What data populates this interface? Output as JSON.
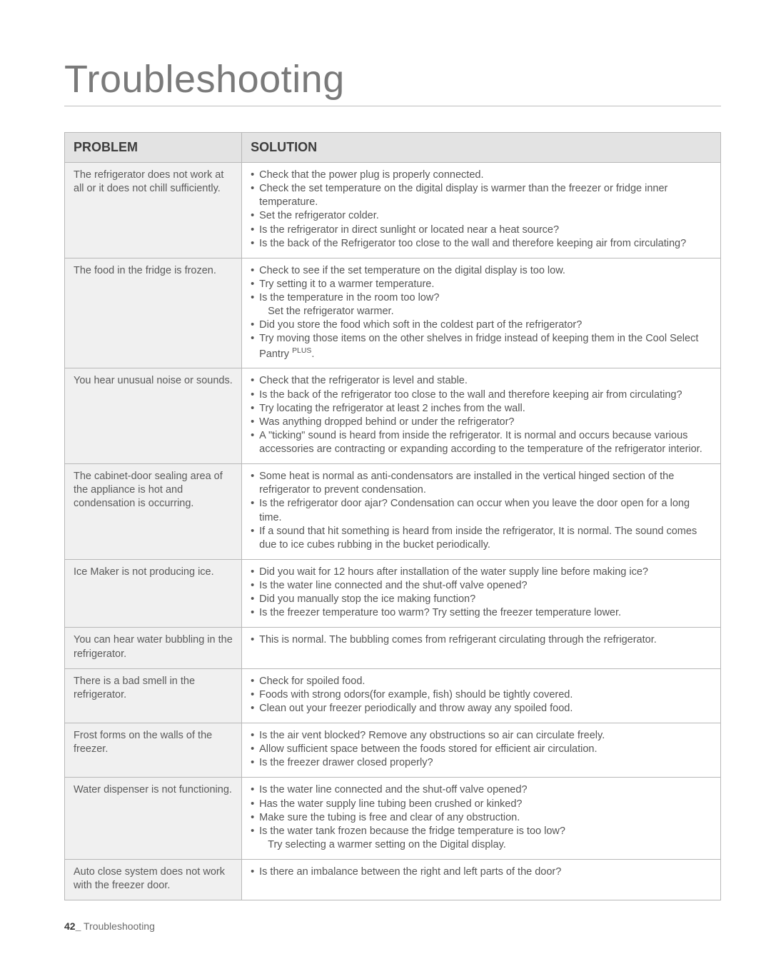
{
  "title": "Troubleshooting",
  "columns": [
    "PROBLEM",
    "SOLUTION"
  ],
  "rows": [
    {
      "problem": "The refrigerator does not work at all or it does not chill sufficiently.",
      "solutions": [
        {
          "t": "Check that the power plug is properly connected."
        },
        {
          "t": "Check the set temperature on the digital display is warmer than the freezer or fridge inner temperature."
        },
        {
          "t": "Set the refrigerator colder."
        },
        {
          "t": "Is the refrigerator in direct sunlight or located near a heat source?"
        },
        {
          "t": "Is the back of the Refrigerator too close to the wall and therefore keeping air from circulating?"
        }
      ]
    },
    {
      "problem": "The food in the fridge is frozen.",
      "solutions": [
        {
          "t": "Check to see if the set temperature on the digital display is too low."
        },
        {
          "t": "Try setting it to a warmer temperature."
        },
        {
          "t": "Is the temperature in the room too low?",
          "sub": "Set the refrigerator warmer."
        },
        {
          "t": "Did you store the food which soft in the coldest part of the refrigerator?"
        },
        {
          "t": "Try moving those items on the other shelves in fridge instead of keeping them in the Cool Select Pantry",
          "sup": "PLUS",
          "tail": "."
        }
      ]
    },
    {
      "problem": "You hear unusual noise or sounds.",
      "solutions": [
        {
          "t": "Check that the refrigerator is level and stable."
        },
        {
          "t": "Is the back of the refrigerator too close to the wall and therefore keeping air from circulating?"
        },
        {
          "t": "Try locating the refrigerator at least 2 inches from the wall."
        },
        {
          "t": "Was anything dropped behind or under the refrigerator?"
        },
        {
          "t": "A \"ticking\" sound is heard from inside the refrigerator. It is normal and occurs because various accessories are contracting or expanding according to the temperature of the refrigerator interior."
        }
      ]
    },
    {
      "problem": "The cabinet-door sealing area of the appliance is hot and condensation is occurring.",
      "solutions": [
        {
          "t": "Some heat is normal as anti-condensators are installed in the vertical hinged section of the refrigerator to prevent condensation."
        },
        {
          "t": "Is the refrigerator door ajar? Condensation can occur when you leave the door open for a long time."
        },
        {
          "t": "If a sound that hit something is heard from inside the refrigerator, It is normal. The sound comes due to ice cubes rubbing in the bucket periodically."
        }
      ]
    },
    {
      "problem": "Ice Maker is not producing ice.",
      "solutions": [
        {
          "t": "Did you wait for 12 hours after installation of the water supply line before making ice?"
        },
        {
          "t": "Is the water line connected and the shut-off valve opened?"
        },
        {
          "t": "Did you manually stop the ice making function?"
        },
        {
          "t": "Is the freezer temperature too warm? Try setting the freezer temperature lower."
        }
      ]
    },
    {
      "problem": "You can hear water bubbling in the refrigerator.",
      "solutions": [
        {
          "t": "This is normal. The bubbling comes from refrigerant circulating through the refrigerator."
        }
      ]
    },
    {
      "problem": "There is a bad smell in the refrigerator.",
      "solutions": [
        {
          "t": "Check for spoiled food."
        },
        {
          "t": "Foods with strong odors(for example, fish) should be tightly covered."
        },
        {
          "t": "Clean out your freezer periodically and throw away any spoiled food."
        }
      ]
    },
    {
      "problem": "Frost forms on the walls of the freezer.",
      "solutions": [
        {
          "t": "Is the air vent blocked? Remove any obstructions so air can circulate freely."
        },
        {
          "t": "Allow sufficient space between the foods stored for efficient air circulation."
        },
        {
          "t": "Is the freezer drawer closed properly?"
        }
      ]
    },
    {
      "problem": "Water dispenser is not functioning.",
      "solutions": [
        {
          "t": "Is the water line connected and the shut-off valve opened?"
        },
        {
          "t": "Has the water supply line tubing been crushed or kinked?"
        },
        {
          "t": "Make sure the tubing is free and clear of any obstruction."
        },
        {
          "t": "Is the water tank frozen because the fridge temperature is too low?",
          "sub": "Try selecting a warmer setting on the Digital display."
        }
      ]
    },
    {
      "problem": "Auto close system does not work with the freezer door.",
      "solutions": [
        {
          "t": "Is there an imbalance between the right and left parts of the door?"
        }
      ]
    }
  ],
  "footer": {
    "page": "42_",
    "section": "Troubleshooting"
  },
  "style": {
    "page_bg": "#ffffff",
    "title_color": "#7a7a7a",
    "title_fontsize": 54,
    "header_bg": "#e3e3e3",
    "problem_bg": "#f0f0f0",
    "border_color": "#b8b8b8",
    "body_fontsize": 14.5,
    "text_color": "#555555"
  }
}
